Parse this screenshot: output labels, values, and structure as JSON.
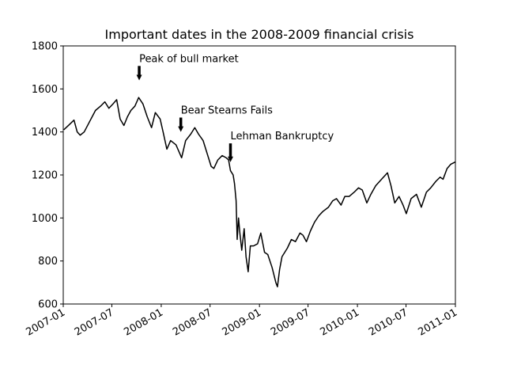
{
  "chart_data": {
    "type": "line",
    "title": "Important dates in the 2008-2009 financial crisis",
    "xlabel": "",
    "ylabel": "",
    "x_range": [
      "2007-01-01",
      "2011-01-01"
    ],
    "ylim": [
      600,
      1800
    ],
    "x_ticks": [
      "2007-01",
      "2007-07",
      "2008-01",
      "2008-07",
      "2009-01",
      "2009-07",
      "2010-01",
      "2010-07",
      "2011-01"
    ],
    "y_ticks": [
      600,
      800,
      1000,
      1200,
      1400,
      1600,
      1800
    ],
    "grid": false,
    "legend": "none",
    "line_color": "#000000",
    "series": [
      {
        "x": [
          "2007-01-03",
          "2007-01-20",
          "2007-02-10",
          "2007-02-22",
          "2007-03-05",
          "2007-03-20",
          "2007-04-10",
          "2007-05-01",
          "2007-05-20",
          "2007-06-05",
          "2007-06-20",
          "2007-07-05",
          "2007-07-19",
          "2007-08-01",
          "2007-08-15",
          "2007-08-28",
          "2007-09-10",
          "2007-09-25",
          "2007-10-09",
          "2007-10-25",
          "2007-11-10",
          "2007-11-26",
          "2007-12-10",
          "2007-12-28",
          "2008-01-08",
          "2008-01-22",
          "2008-02-05",
          "2008-02-25",
          "2008-03-10",
          "2008-03-17",
          "2008-04-01",
          "2008-04-20",
          "2008-05-05",
          "2008-05-19",
          "2008-06-05",
          "2008-06-25",
          "2008-07-05",
          "2008-07-15",
          "2008-07-30",
          "2008-08-15",
          "2008-08-30",
          "2008-09-08",
          "2008-09-15",
          "2008-09-25",
          "2008-09-30",
          "2008-10-06",
          "2008-10-10",
          "2008-10-15",
          "2008-10-20",
          "2008-10-27",
          "2008-11-05",
          "2008-11-12",
          "2008-11-20",
          "2008-11-28",
          "2008-12-10",
          "2008-12-25",
          "2009-01-06",
          "2009-01-20",
          "2009-02-01",
          "2009-02-17",
          "2009-03-03",
          "2009-03-09",
          "2009-03-17",
          "2009-03-26",
          "2009-04-15",
          "2009-04-30",
          "2009-05-15",
          "2009-06-01",
          "2009-06-12",
          "2009-06-25",
          "2009-07-10",
          "2009-07-25",
          "2009-08-10",
          "2009-08-25",
          "2009-09-15",
          "2009-10-01",
          "2009-10-15",
          "2009-11-01",
          "2009-11-15",
          "2009-12-01",
          "2009-12-20",
          "2010-01-05",
          "2010-01-19",
          "2010-02-05",
          "2010-02-20",
          "2010-03-10",
          "2010-04-01",
          "2010-04-23",
          "2010-05-06",
          "2010-05-20",
          "2010-06-05",
          "2010-06-20",
          "2010-07-02",
          "2010-07-20",
          "2010-08-09",
          "2010-08-27",
          "2010-09-15",
          "2010-10-01",
          "2010-10-20",
          "2010-11-05",
          "2010-11-16",
          "2010-12-01",
          "2010-12-15",
          "2010-12-31"
        ],
        "values": [
          1410,
          1430,
          1455,
          1400,
          1385,
          1400,
          1450,
          1500,
          1520,
          1540,
          1510,
          1530,
          1550,
          1460,
          1430,
          1470,
          1500,
          1520,
          1560,
          1530,
          1470,
          1420,
          1490,
          1460,
          1400,
          1320,
          1360,
          1340,
          1300,
          1280,
          1360,
          1390,
          1420,
          1390,
          1360,
          1280,
          1240,
          1230,
          1270,
          1290,
          1280,
          1270,
          1220,
          1200,
          1160,
          1080,
          900,
          1000,
          930,
          850,
          950,
          820,
          750,
          870,
          870,
          880,
          930,
          840,
          830,
          770,
          700,
          680,
          760,
          820,
          860,
          900,
          890,
          930,
          920,
          890,
          940,
          980,
          1010,
          1030,
          1050,
          1080,
          1090,
          1060,
          1100,
          1100,
          1120,
          1140,
          1130,
          1070,
          1110,
          1150,
          1180,
          1210,
          1150,
          1070,
          1100,
          1060,
          1020,
          1090,
          1110,
          1050,
          1120,
          1140,
          1170,
          1190,
          1180,
          1230,
          1250,
          1260
        ]
      }
    ],
    "annotations": [
      {
        "text": "Peak of bull market",
        "x": "2007-10-11",
        "y": 1640,
        "text_y": 1740
      },
      {
        "text": "Bear Stearns Fails",
        "x": "2008-03-14",
        "y": 1400,
        "text_y": 1500
      },
      {
        "text": "Lehman Bankruptcy",
        "x": "2008-09-15",
        "y": 1260,
        "text_y": 1380
      }
    ]
  }
}
